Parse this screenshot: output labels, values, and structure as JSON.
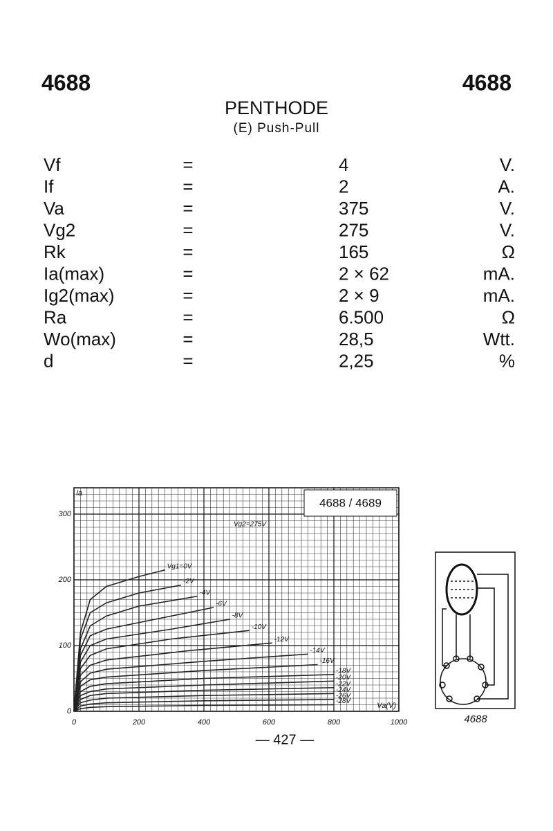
{
  "header": {
    "left": "4688",
    "right": "4688",
    "title": "PENTHODE",
    "subtitle": "(E) Push-Pull"
  },
  "table": {
    "rows": [
      [
        "Vf",
        "=",
        "4",
        "V."
      ],
      [
        "If",
        "=",
        "2",
        "A."
      ],
      [
        "Va",
        "=",
        "375",
        "V."
      ],
      [
        "Vg2",
        "=",
        "275",
        "V."
      ],
      [
        "Rk",
        "=",
        "165",
        "Ω"
      ],
      [
        "Ia(max)",
        "=",
        "2 × 62",
        "mA."
      ],
      [
        "Ig2(max)",
        "=",
        "2 × 9",
        "mA."
      ],
      [
        "Ra",
        "=",
        "6.500",
        "Ω"
      ],
      [
        "Wo(max)",
        "=",
        "28,5",
        "Wtt."
      ],
      [
        "d",
        "=",
        "2,25",
        "%"
      ]
    ]
  },
  "chart_data": {
    "type": "line",
    "title": "4688 / 4689",
    "y_label": "Ia",
    "x_label": "Va(V)",
    "annotation": "Vg2=275V",
    "xlim": [
      0,
      1000
    ],
    "ylim": [
      0,
      340
    ],
    "xticks": [
      0,
      200,
      400,
      600,
      800,
      1000
    ],
    "yticks": [
      0,
      100,
      200,
      300
    ],
    "grid": true,
    "series": [
      {
        "name": "Vg1=0V",
        "color": "#222",
        "x": [
          0,
          20,
          50,
          100,
          200,
          280
        ],
        "values": [
          0,
          120,
          170,
          190,
          205,
          215
        ]
      },
      {
        "name": "-2V",
        "color": "#222",
        "x": [
          0,
          20,
          50,
          100,
          200,
          330
        ],
        "values": [
          0,
          110,
          150,
          165,
          180,
          192
        ]
      },
      {
        "name": "-4V",
        "color": "#222",
        "x": [
          0,
          20,
          50,
          100,
          200,
          380
        ],
        "values": [
          0,
          95,
          130,
          145,
          160,
          175
        ]
      },
      {
        "name": "-6V",
        "color": "#222",
        "x": [
          0,
          20,
          50,
          100,
          250,
          430
        ],
        "values": [
          0,
          85,
          115,
          125,
          140,
          158
        ]
      },
      {
        "name": "-8V",
        "color": "#222",
        "x": [
          0,
          20,
          50,
          100,
          300,
          480
        ],
        "values": [
          0,
          75,
          100,
          110,
          125,
          140
        ]
      },
      {
        "name": "-10V",
        "color": "#222",
        "x": [
          0,
          20,
          50,
          100,
          300,
          540
        ],
        "values": [
          0,
          65,
          85,
          95,
          110,
          123
        ]
      },
      {
        "name": "-12V",
        "color": "#222",
        "x": [
          0,
          20,
          50,
          100,
          350,
          610
        ],
        "values": [
          0,
          55,
          70,
          78,
          92,
          104
        ]
      },
      {
        "name": "-14V",
        "color": "#222",
        "x": [
          0,
          20,
          50,
          100,
          400,
          720
        ],
        "values": [
          0,
          45,
          58,
          64,
          76,
          87
        ]
      },
      {
        "name": "-16V",
        "color": "#222",
        "x": [
          0,
          20,
          50,
          100,
          400,
          750
        ],
        "values": [
          0,
          38,
          48,
          52,
          62,
          71
        ]
      },
      {
        "name": "-18V",
        "color": "#222",
        "x": [
          0,
          20,
          50,
          100,
          400,
          800
        ],
        "values": [
          0,
          30,
          38,
          42,
          50,
          56
        ]
      },
      {
        "name": "-20V",
        "color": "#222",
        "x": [
          0,
          20,
          50,
          100,
          400,
          800
        ],
        "values": [
          0,
          24,
          30,
          34,
          40,
          46
        ]
      },
      {
        "name": "-22V",
        "color": "#222",
        "x": [
          0,
          20,
          50,
          100,
          400,
          800
        ],
        "values": [
          0,
          18,
          24,
          27,
          32,
          36
        ]
      },
      {
        "name": "-24V",
        "color": "#222",
        "x": [
          0,
          20,
          50,
          100,
          400,
          800
        ],
        "values": [
          0,
          13,
          17,
          20,
          24,
          27
        ]
      },
      {
        "name": "-26V",
        "color": "#222",
        "x": [
          0,
          20,
          50,
          100,
          400,
          800
        ],
        "values": [
          0,
          8,
          11,
          13,
          16,
          18
        ]
      },
      {
        "name": "-28V",
        "color": "#222",
        "x": [
          0,
          20,
          50,
          100,
          400,
          800
        ],
        "values": [
          0,
          4,
          6,
          7,
          9,
          10
        ]
      }
    ]
  },
  "tube_label": "4688",
  "page_number": "— 427 —"
}
